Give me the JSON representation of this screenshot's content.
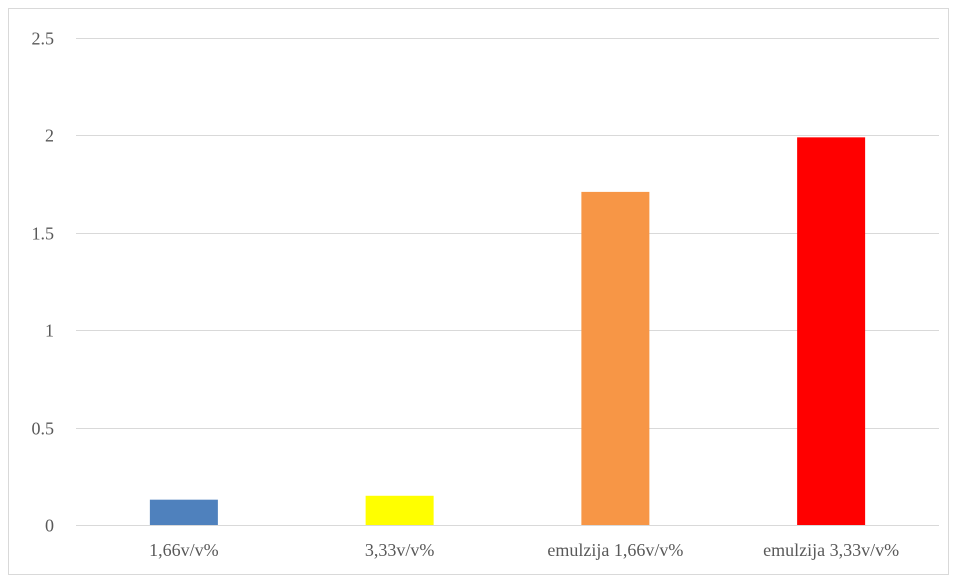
{
  "chart_data": {
    "type": "bar",
    "title": "",
    "xlabel": "",
    "ylabel": "",
    "categories": [
      "1,66v/v%",
      "3,33v/v%",
      "emulzija 1,66v/v%",
      "emulzija 3,33v/v%"
    ],
    "values": [
      0.13,
      0.15,
      1.71,
      1.99
    ],
    "colors": [
      "#4f81bd",
      "#ffff00",
      "#f79646",
      "#ff0000"
    ],
    "ylim": [
      0,
      2.5
    ],
    "yticks": [
      0,
      0.5,
      1,
      1.5,
      2,
      2.5
    ],
    "ytick_labels": [
      "0",
      "0.5",
      "1",
      "1.5",
      "2",
      "2.5"
    ],
    "grid": true,
    "legend": "none"
  }
}
